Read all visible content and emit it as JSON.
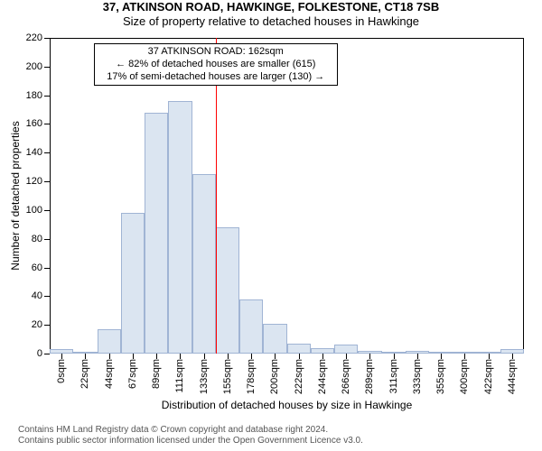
{
  "title": "37, ATKINSON ROAD, HAWKINGE, FOLKESTONE, CT18 7SB",
  "subtitle": "Size of property relative to detached houses in Hawkinge",
  "x_axis_title": "Distribution of detached houses by size in Hawkinge",
  "y_axis_title": "Number of detached properties",
  "footer_line1": "Contains HM Land Registry data © Crown copyright and database right 2024.",
  "footer_line2": "Contains public sector information licensed under the Open Government Licence v3.0.",
  "chart": {
    "type": "histogram",
    "x_tick_labels": [
      "0sqm",
      "22sqm",
      "44sqm",
      "67sqm",
      "89sqm",
      "111sqm",
      "133sqm",
      "155sqm",
      "178sqm",
      "200sqm",
      "222sqm",
      "244sqm",
      "266sqm",
      "289sqm",
      "311sqm",
      "333sqm",
      "355sqm",
      "400sqm",
      "422sqm",
      "444sqm"
    ],
    "num_bars": 20,
    "y_ticks": [
      0,
      20,
      40,
      60,
      80,
      100,
      120,
      140,
      160,
      180,
      200,
      220
    ],
    "ylim": [
      0,
      220
    ],
    "values": [
      3,
      0,
      17,
      98,
      168,
      176,
      125,
      88,
      38,
      21,
      7,
      4,
      6,
      2,
      0,
      2,
      0,
      0,
      0,
      3
    ],
    "bar_fill": "#dbe5f1",
    "bar_border": "#a0b4d4",
    "grid_color": "#000000",
    "background": "#ffffff",
    "marker_color": "#ff0000",
    "marker_bin_index": 7,
    "anno_lines": [
      "37 ATKINSON ROAD: 162sqm",
      "← 82% of detached houses are smaller (615)",
      "17% of semi-detached houses are larger (130) →"
    ]
  }
}
